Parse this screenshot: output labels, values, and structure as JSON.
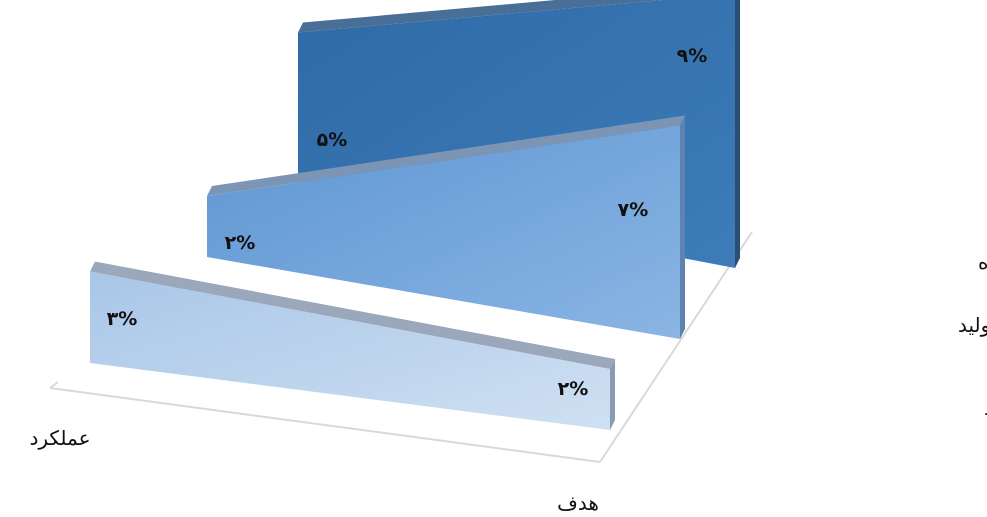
{
  "chart_data": {
    "type": "area",
    "categories": [
      "عملکرد",
      "هدف"
    ],
    "series": [
      {
        "name": "رشد ارزش افزوده",
        "values": [
          5,
          9
        ],
        "labels": [
          "۵%",
          "۹%"
        ]
      },
      {
        "name": "رشد نهاده های تولید",
        "values": [
          2,
          7
        ],
        "labels": [
          "۲%",
          "۷%"
        ]
      },
      {
        "name": "رشد بهره وری کل عوامل تولید",
        "values": [
          3,
          2
        ],
        "labels": [
          "۳%",
          "۲%"
        ]
      }
    ],
    "grid": false,
    "legend": "none",
    "colors": {
      "series_front": [
        "#3c73aa",
        "#74a3d7",
        "#b9cfe9"
      ],
      "series_top": [
        "#4a6f96",
        "#7c95b5",
        "#9ba8bb"
      ],
      "series_side": [
        "#2a4e74",
        "#5e83b0",
        "#8a9ab4"
      ],
      "axis": "#d9d9d9"
    }
  }
}
